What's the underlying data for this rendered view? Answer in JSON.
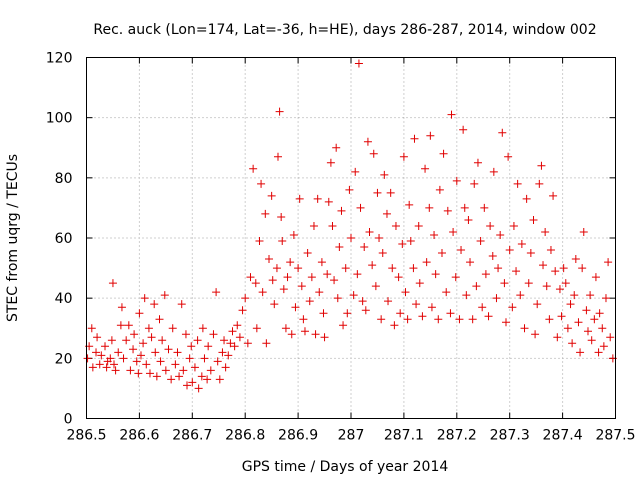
{
  "chart_data": {
    "type": "scatter",
    "title": "Rec. auck (Lon=174, Lat=-36, h=HE), days 286-287, 2014, window 002",
    "xlabel": "GPS time / Days of year 2014",
    "ylabel": "STEC from uqrg / TECUs",
    "xlim": [
      286.5,
      287.5
    ],
    "ylim": [
      0,
      120
    ],
    "x_ticks": [
      "286.5",
      "286.6",
      "286.7",
      "286.8",
      "286.9",
      "287",
      "287.1",
      "287.2",
      "287.3",
      "287.4",
      "287.5"
    ],
    "y_ticks": [
      "0",
      "20",
      "40",
      "60",
      "80",
      "100",
      "120"
    ],
    "grid": true,
    "marker": "+",
    "colors": {
      "marker": "#e00000",
      "grid": "#a0a0a0"
    },
    "series": [
      {
        "name": "",
        "points": [
          [
            286.502,
            20
          ],
          [
            286.505,
            24
          ],
          [
            286.51,
            30
          ],
          [
            286.512,
            17
          ],
          [
            286.518,
            22
          ],
          [
            286.52,
            27
          ],
          [
            286.525,
            18
          ],
          [
            286.528,
            21
          ],
          [
            286.535,
            24
          ],
          [
            286.538,
            17
          ],
          [
            286.54,
            19
          ],
          [
            286.545,
            20
          ],
          [
            286.548,
            26
          ],
          [
            286.55,
            45
          ],
          [
            286.552,
            18
          ],
          [
            286.555,
            16
          ],
          [
            286.56,
            22
          ],
          [
            286.565,
            31
          ],
          [
            286.567,
            37
          ],
          [
            286.57,
            20
          ],
          [
            286.575,
            26
          ],
          [
            286.58,
            31
          ],
          [
            286.583,
            16
          ],
          [
            286.588,
            23
          ],
          [
            286.59,
            28
          ],
          [
            286.595,
            19
          ],
          [
            286.598,
            15
          ],
          [
            286.6,
            35
          ],
          [
            286.603,
            21
          ],
          [
            286.607,
            25
          ],
          [
            286.61,
            40
          ],
          [
            286.613,
            18
          ],
          [
            286.618,
            30
          ],
          [
            286.62,
            15
          ],
          [
            286.623,
            27
          ],
          [
            286.628,
            38
          ],
          [
            286.63,
            22
          ],
          [
            286.633,
            14
          ],
          [
            286.638,
            33
          ],
          [
            286.64,
            19
          ],
          [
            286.643,
            26
          ],
          [
            286.648,
            41
          ],
          [
            286.65,
            16
          ],
          [
            286.655,
            23
          ],
          [
            286.66,
            13
          ],
          [
            286.663,
            30
          ],
          [
            286.668,
            18
          ],
          [
            286.672,
            22
          ],
          [
            286.675,
            14
          ],
          [
            286.68,
            38
          ],
          [
            286.683,
            16
          ],
          [
            286.688,
            28
          ],
          [
            286.69,
            11
          ],
          [
            286.695,
            20
          ],
          [
            286.698,
            24
          ],
          [
            286.7,
            12
          ],
          [
            286.705,
            17
          ],
          [
            286.71,
            26
          ],
          [
            286.712,
            10
          ],
          [
            286.718,
            14
          ],
          [
            286.72,
            30
          ],
          [
            286.723,
            20
          ],
          [
            286.728,
            13
          ],
          [
            286.73,
            24
          ],
          [
            286.735,
            16
          ],
          [
            286.74,
            28
          ],
          [
            286.745,
            42
          ],
          [
            286.748,
            19
          ],
          [
            286.752,
            13
          ],
          [
            286.757,
            22
          ],
          [
            286.76,
            26
          ],
          [
            286.763,
            17
          ],
          [
            286.768,
            21
          ],
          [
            286.772,
            25
          ],
          [
            286.776,
            29
          ],
          [
            286.78,
            24
          ],
          [
            286.785,
            31
          ],
          [
            286.79,
            27
          ],
          [
            286.795,
            36
          ],
          [
            286.8,
            40
          ],
          [
            286.805,
            25
          ],
          [
            286.81,
            47
          ],
          [
            286.815,
            83
          ],
          [
            286.82,
            45
          ],
          [
            286.822,
            30
          ],
          [
            286.827,
            59
          ],
          [
            286.83,
            78
          ],
          [
            286.833,
            42
          ],
          [
            286.838,
            68
          ],
          [
            286.84,
            25
          ],
          [
            286.845,
            53
          ],
          [
            286.85,
            74
          ],
          [
            286.852,
            46
          ],
          [
            286.855,
            38
          ],
          [
            286.86,
            50
          ],
          [
            286.862,
            87
          ],
          [
            286.865,
            102
          ],
          [
            286.868,
            67
          ],
          [
            286.87,
            59
          ],
          [
            286.873,
            43
          ],
          [
            286.877,
            30
          ],
          [
            286.88,
            47
          ],
          [
            286.885,
            52
          ],
          [
            286.888,
            28
          ],
          [
            286.892,
            61
          ],
          [
            286.895,
            37
          ],
          [
            286.9,
            50
          ],
          [
            286.903,
            73
          ],
          [
            286.907,
            44
          ],
          [
            286.91,
            33
          ],
          [
            286.913,
            29
          ],
          [
            286.918,
            55
          ],
          [
            286.922,
            39
          ],
          [
            286.926,
            47
          ],
          [
            286.93,
            64
          ],
          [
            286.933,
            28
          ],
          [
            286.937,
            73
          ],
          [
            286.94,
            42
          ],
          [
            286.945,
            52
          ],
          [
            286.948,
            35
          ],
          [
            286.95,
            27
          ],
          [
            286.955,
            48
          ],
          [
            286.958,
            72
          ],
          [
            286.962,
            85
          ],
          [
            286.965,
            64
          ],
          [
            286.968,
            46
          ],
          [
            286.972,
            90
          ],
          [
            286.975,
            40
          ],
          [
            286.978,
            57
          ],
          [
            286.982,
            69
          ],
          [
            286.985,
            31
          ],
          [
            286.99,
            50
          ],
          [
            286.993,
            35
          ],
          [
            286.997,
            76
          ],
          [
            287.0,
            60
          ],
          [
            287.005,
            41
          ],
          [
            287.008,
            82
          ],
          [
            287.012,
            48
          ],
          [
            287.015,
            118
          ],
          [
            287.018,
            70
          ],
          [
            287.022,
            39
          ],
          [
            287.025,
            57
          ],
          [
            287.028,
            36
          ],
          [
            287.032,
            92
          ],
          [
            287.035,
            62
          ],
          [
            287.04,
            51
          ],
          [
            287.043,
            88
          ],
          [
            287.047,
            44
          ],
          [
            287.05,
            75
          ],
          [
            287.053,
            60
          ],
          [
            287.057,
            33
          ],
          [
            287.06,
            55
          ],
          [
            287.063,
            81
          ],
          [
            287.068,
            68
          ],
          [
            287.07,
            39
          ],
          [
            287.075,
            75
          ],
          [
            287.078,
            50
          ],
          [
            287.082,
            31
          ],
          [
            287.085,
            64
          ],
          [
            287.09,
            47
          ],
          [
            287.093,
            35
          ],
          [
            287.097,
            58
          ],
          [
            287.1,
            87
          ],
          [
            287.103,
            42
          ],
          [
            287.107,
            33
          ],
          [
            287.11,
            71
          ],
          [
            287.113,
            59
          ],
          [
            287.118,
            50
          ],
          [
            287.12,
            93
          ],
          [
            287.123,
            38
          ],
          [
            287.128,
            64
          ],
          [
            287.13,
            45
          ],
          [
            287.135,
            34
          ],
          [
            287.14,
            83
          ],
          [
            287.143,
            52
          ],
          [
            287.148,
            70
          ],
          [
            287.15,
            94
          ],
          [
            287.153,
            37
          ],
          [
            287.157,
            61
          ],
          [
            287.16,
            48
          ],
          [
            287.165,
            33
          ],
          [
            287.168,
            76
          ],
          [
            287.172,
            55
          ],
          [
            287.175,
            88
          ],
          [
            287.18,
            42
          ],
          [
            287.183,
            69
          ],
          [
            287.188,
            35
          ],
          [
            287.19,
            101
          ],
          [
            287.193,
            62
          ],
          [
            287.198,
            47
          ],
          [
            287.2,
            79
          ],
          [
            287.205,
            33
          ],
          [
            287.208,
            56
          ],
          [
            287.212,
            96
          ],
          [
            287.215,
            70
          ],
          [
            287.218,
            41
          ],
          [
            287.222,
            66
          ],
          [
            287.225,
            52
          ],
          [
            287.23,
            33
          ],
          [
            287.233,
            78
          ],
          [
            287.237,
            44
          ],
          [
            287.24,
            85
          ],
          [
            287.245,
            59
          ],
          [
            287.248,
            37
          ],
          [
            287.252,
            70
          ],
          [
            287.255,
            48
          ],
          [
            287.26,
            34
          ],
          [
            287.263,
            64
          ],
          [
            287.268,
            54
          ],
          [
            287.27,
            82
          ],
          [
            287.275,
            40
          ],
          [
            287.278,
            50
          ],
          [
            287.282,
            61
          ],
          [
            287.286,
            95
          ],
          [
            287.29,
            45
          ],
          [
            287.293,
            32
          ],
          [
            287.297,
            87
          ],
          [
            287.3,
            56
          ],
          [
            287.305,
            37
          ],
          [
            287.308,
            64
          ],
          [
            287.312,
            49
          ],
          [
            287.315,
            78
          ],
          [
            287.32,
            41
          ],
          [
            287.323,
            58
          ],
          [
            287.328,
            30
          ],
          [
            287.332,
            73
          ],
          [
            287.336,
            45
          ],
          [
            287.34,
            55
          ],
          [
            287.345,
            66
          ],
          [
            287.348,
            28
          ],
          [
            287.352,
            38
          ],
          [
            287.356,
            78
          ],
          [
            287.36,
            84
          ],
          [
            287.363,
            51
          ],
          [
            287.367,
            62
          ],
          [
            287.37,
            44
          ],
          [
            287.375,
            33
          ],
          [
            287.378,
            56
          ],
          [
            287.382,
            74
          ],
          [
            287.386,
            49
          ],
          [
            287.39,
            27
          ],
          [
            287.395,
            43
          ],
          [
            287.398,
            34
          ],
          [
            287.402,
            50
          ],
          [
            287.406,
            45
          ],
          [
            287.41,
            30
          ],
          [
            287.415,
            38
          ],
          [
            287.418,
            25
          ],
          [
            287.422,
            41
          ],
          [
            287.425,
            53
          ],
          [
            287.43,
            32
          ],
          [
            287.433,
            22
          ],
          [
            287.437,
            50
          ],
          [
            287.44,
            62
          ],
          [
            287.445,
            36
          ],
          [
            287.448,
            29
          ],
          [
            287.452,
            41
          ],
          [
            287.455,
            26
          ],
          [
            287.46,
            33
          ],
          [
            287.463,
            47
          ],
          [
            287.468,
            22
          ],
          [
            287.47,
            35
          ],
          [
            287.475,
            30
          ],
          [
            287.478,
            24
          ],
          [
            287.482,
            40
          ],
          [
            287.486,
            52
          ],
          [
            287.49,
            27
          ],
          [
            287.495,
            20
          ]
        ]
      }
    ]
  }
}
